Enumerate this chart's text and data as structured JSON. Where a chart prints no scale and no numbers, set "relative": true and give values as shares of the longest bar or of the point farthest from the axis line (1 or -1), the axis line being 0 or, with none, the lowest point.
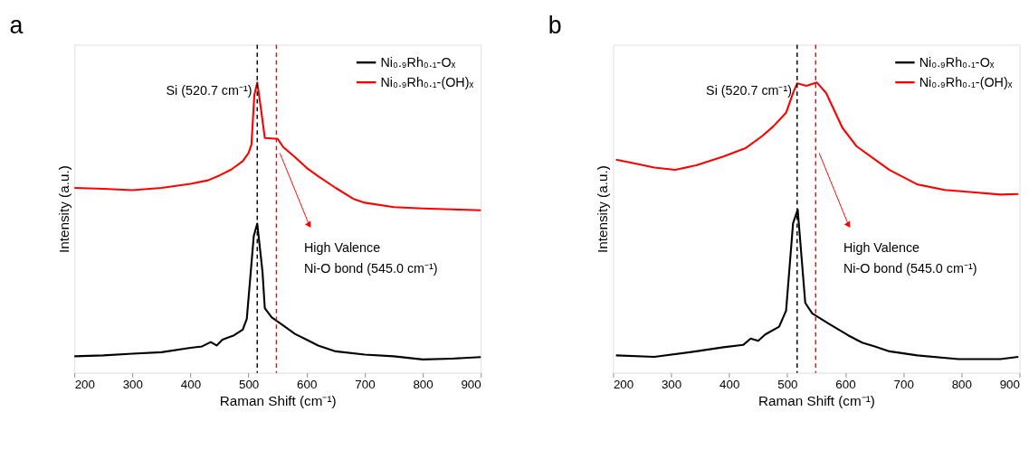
{
  "chart_data": [
    {
      "type": "line",
      "title": "a",
      "xlabel": "Raman Shift (cm⁻¹)",
      "ylabel": "Intensity (a.u.)",
      "relative": true,
      "xlim": [
        200,
        900
      ],
      "xticks": [
        200,
        300,
        400,
        500,
        600,
        700,
        800,
        900
      ],
      "tick_labels": "x",
      "legend": "top right",
      "line_style": "solid",
      "series": [
        {
          "name": "Ni₀.₉Rh₀.₁-Oₓ",
          "color": "#000000",
          "x": [
            200,
            250,
            300,
            350,
            400,
            420,
            435,
            445,
            455,
            475,
            490,
            497,
            509,
            515,
            524,
            528,
            540,
            560,
            580,
            600,
            620,
            650,
            700,
            750,
            800,
            850,
            900
          ],
          "values": [
            0.057,
            0.06,
            0.066,
            0.071,
            0.086,
            0.091,
            0.106,
            0.094,
            0.114,
            0.129,
            0.149,
            0.186,
            0.471,
            0.514,
            0.349,
            0.223,
            0.191,
            0.163,
            0.134,
            0.114,
            0.094,
            0.074,
            0.063,
            0.057,
            0.046,
            0.049,
            0.054
          ]
        },
        {
          "name": "Ni₀.₉Rh₀.₁-(OH)ₓ",
          "color": "#ff0000",
          "x": [
            200,
            250,
            300,
            350,
            400,
            430,
            450,
            470,
            490,
            500,
            505,
            510,
            515,
            522,
            528,
            550,
            560,
            580,
            600,
            620,
            650,
            680,
            700,
            750,
            800,
            850,
            900
          ],
          "values": [
            0.637,
            0.634,
            0.629,
            0.637,
            0.651,
            0.663,
            0.68,
            0.7,
            0.729,
            0.757,
            0.786,
            0.957,
            1.0,
            0.9,
            0.809,
            0.806,
            0.777,
            0.743,
            0.706,
            0.677,
            0.637,
            0.6,
            0.586,
            0.571,
            0.566,
            0.563,
            0.56
          ]
        }
      ],
      "ref_lines": [
        {
          "axis": "x",
          "value": 515,
          "color": "#000000",
          "line_style": "dashed"
        },
        {
          "axis": "x",
          "value": 548,
          "color": "#ff0000",
          "line_style": "dashed"
        }
      ],
      "annotations": [
        "Si (520.7 cm⁻¹)",
        "High Valence",
        "Ni-O bond (545.0 cm⁻¹)"
      ]
    },
    {
      "type": "line",
      "title": "b",
      "xlabel": "Raman Shift (cm⁻¹)",
      "ylabel": "Intensity (a.u.)",
      "relative": true,
      "xlim": [
        200,
        900
      ],
      "xticks": [
        200,
        300,
        400,
        500,
        600,
        700,
        800,
        900
      ],
      "tick_labels": "x",
      "legend": "top right",
      "line_style": "solid",
      "series": [
        {
          "name": "Ni₀.₉Rh₀.₁-Oₓ",
          "color": "#000000",
          "x": [
            205,
            271,
            343,
            390,
            424,
            437,
            450,
            462,
            486,
            498,
            510,
            518,
            531,
            543,
            571,
            605,
            629,
            652,
            676,
            724,
            795,
            867,
            898
          ],
          "values": [
            0.06,
            0.055,
            0.074,
            0.088,
            0.096,
            0.118,
            0.11,
            0.132,
            0.159,
            0.214,
            0.515,
            0.562,
            0.241,
            0.205,
            0.17,
            0.129,
            0.104,
            0.09,
            0.074,
            0.06,
            0.047,
            0.047,
            0.055
          ]
        },
        {
          "name": "Ni₀.₉Rh₀.₁-(OH)ₓ",
          "color": "#ff0000",
          "x": [
            205,
            238,
            271,
            307,
            343,
            390,
            429,
            457,
            476,
            498,
            510,
            517,
            533,
            551,
            567,
            595,
            619,
            657,
            676,
            724,
            771,
            819,
            867,
            898
          ],
          "values": [
            0.734,
            0.721,
            0.707,
            0.699,
            0.715,
            0.745,
            0.775,
            0.816,
            0.849,
            0.896,
            0.964,
            0.997,
            0.989,
            1.0,
            0.964,
            0.844,
            0.781,
            0.726,
            0.699,
            0.649,
            0.63,
            0.622,
            0.614,
            0.616
          ]
        }
      ],
      "ref_lines": [
        {
          "axis": "x",
          "value": 517,
          "color": "#000000",
          "line_style": "dashed"
        },
        {
          "axis": "x",
          "value": 549,
          "color": "#ff0000",
          "line_style": "dashed"
        }
      ],
      "annotations": [
        "Si (520.7 cm⁻¹)",
        "High Valence",
        "Ni-O bond (545.0 cm⁻¹)"
      ]
    }
  ]
}
